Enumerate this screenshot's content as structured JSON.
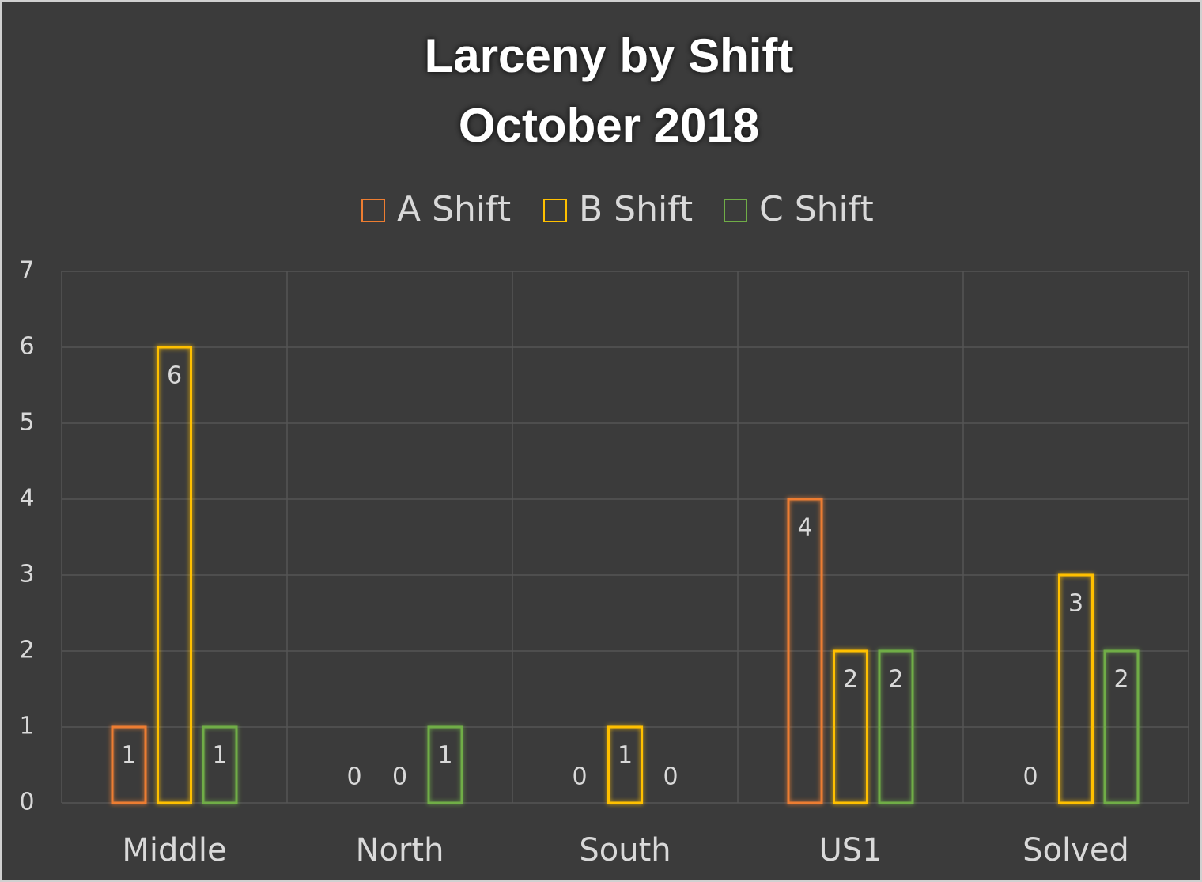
{
  "chart_data": {
    "type": "bar",
    "title": "Larceny by Shift",
    "subtitle": "October 2018",
    "categories": [
      "Middle",
      "North",
      "South",
      "US1",
      "Solved"
    ],
    "series": [
      {
        "name": "A Shift",
        "color": "#ed7d31",
        "values": [
          1,
          0,
          0,
          4,
          0
        ]
      },
      {
        "name": "B Shift",
        "color": "#ffc000",
        "values": [
          6,
          0,
          1,
          2,
          3
        ]
      },
      {
        "name": "C Shift",
        "color": "#70ad47",
        "values": [
          1,
          1,
          0,
          2,
          2
        ]
      }
    ],
    "ylim": [
      0,
      7
    ],
    "yticks": [
      0,
      1,
      2,
      3,
      4,
      5,
      6,
      7
    ],
    "grid": true,
    "legend": "top"
  }
}
